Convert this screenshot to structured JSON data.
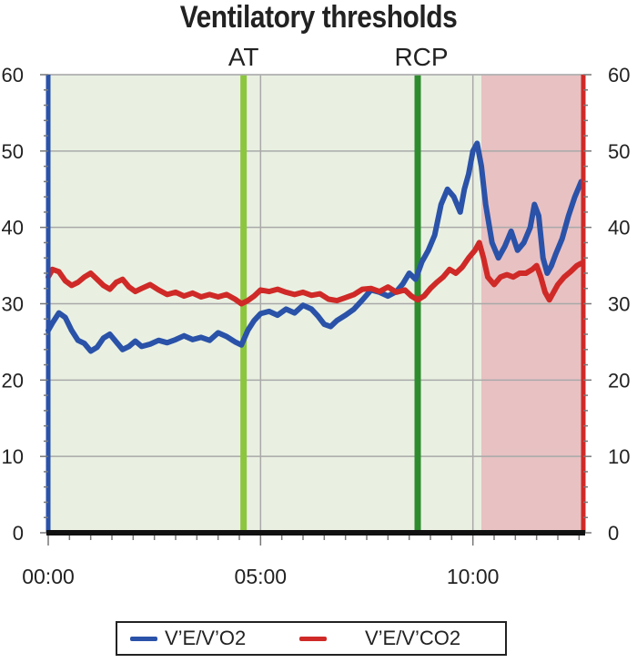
{
  "chart_data": {
    "type": "line",
    "title": "Ventilatory thresholds",
    "xlabel": "",
    "ylabel": "",
    "xlim": [
      0,
      12.6
    ],
    "ylim": [
      0,
      60
    ],
    "x_ticks": [
      0,
      5,
      10
    ],
    "x_tick_labels": [
      "00:00",
      "05:00",
      "10:00"
    ],
    "y_ticks": [
      0,
      10,
      20,
      30,
      40,
      50,
      60
    ],
    "y_tick_labels": [
      "0",
      "10",
      "20",
      "30",
      "40",
      "50",
      "60"
    ],
    "grid": true,
    "legend_position": "bottom",
    "zones": [
      {
        "x_start": 0,
        "x_end": 10.2,
        "color": "#e9f0e2"
      },
      {
        "x_start": 10.2,
        "x_end": 12.6,
        "color": "#e8c1c3"
      }
    ],
    "thresholds": [
      {
        "label": "AT",
        "x": 4.6,
        "color": "#8cc63f"
      },
      {
        "label": "RCP",
        "x": 8.7,
        "color": "#2e8b2e"
      }
    ],
    "series": [
      {
        "name": "V’E/V’O2",
        "color": "#2a52a8",
        "points": [
          [
            0.0,
            26.5
          ],
          [
            0.1,
            27.5
          ],
          [
            0.25,
            28.8
          ],
          [
            0.4,
            28.2
          ],
          [
            0.55,
            26.5
          ],
          [
            0.7,
            25.2
          ],
          [
            0.85,
            24.8
          ],
          [
            1.0,
            23.8
          ],
          [
            1.15,
            24.3
          ],
          [
            1.3,
            25.5
          ],
          [
            1.45,
            26.0
          ],
          [
            1.6,
            25.0
          ],
          [
            1.75,
            24.0
          ],
          [
            1.9,
            24.4
          ],
          [
            2.05,
            25.1
          ],
          [
            2.2,
            24.4
          ],
          [
            2.4,
            24.7
          ],
          [
            2.6,
            25.2
          ],
          [
            2.8,
            24.9
          ],
          [
            3.0,
            25.3
          ],
          [
            3.2,
            25.8
          ],
          [
            3.4,
            25.3
          ],
          [
            3.6,
            25.6
          ],
          [
            3.8,
            25.2
          ],
          [
            4.0,
            26.2
          ],
          [
            4.2,
            25.7
          ],
          [
            4.4,
            25.0
          ],
          [
            4.55,
            24.6
          ],
          [
            4.7,
            26.5
          ],
          [
            4.85,
            27.8
          ],
          [
            5.0,
            28.7
          ],
          [
            5.2,
            29.0
          ],
          [
            5.4,
            28.5
          ],
          [
            5.6,
            29.3
          ],
          [
            5.8,
            28.8
          ],
          [
            6.0,
            29.8
          ],
          [
            6.2,
            29.3
          ],
          [
            6.35,
            28.4
          ],
          [
            6.5,
            27.3
          ],
          [
            6.65,
            27.0
          ],
          [
            6.8,
            27.8
          ],
          [
            7.0,
            28.5
          ],
          [
            7.2,
            29.3
          ],
          [
            7.4,
            30.5
          ],
          [
            7.6,
            31.8
          ],
          [
            7.8,
            31.5
          ],
          [
            8.0,
            31.0
          ],
          [
            8.2,
            31.6
          ],
          [
            8.35,
            32.6
          ],
          [
            8.5,
            34.0
          ],
          [
            8.65,
            33.2
          ],
          [
            8.8,
            35.5
          ],
          [
            8.95,
            37.0
          ],
          [
            9.1,
            39.0
          ],
          [
            9.25,
            43.0
          ],
          [
            9.4,
            45.0
          ],
          [
            9.55,
            44.0
          ],
          [
            9.7,
            42.0
          ],
          [
            9.8,
            45.0
          ],
          [
            9.9,
            47.0
          ],
          [
            10.0,
            50.0
          ],
          [
            10.1,
            51.0
          ],
          [
            10.2,
            48.0
          ],
          [
            10.3,
            43.0
          ],
          [
            10.45,
            38.0
          ],
          [
            10.6,
            36.0
          ],
          [
            10.75,
            37.5
          ],
          [
            10.9,
            39.5
          ],
          [
            11.05,
            37.0
          ],
          [
            11.2,
            38.0
          ],
          [
            11.35,
            40.0
          ],
          [
            11.45,
            43.0
          ],
          [
            11.55,
            41.5
          ],
          [
            11.65,
            36.0
          ],
          [
            11.75,
            34.0
          ],
          [
            11.85,
            35.0
          ],
          [
            11.95,
            36.5
          ],
          [
            12.1,
            38.5
          ],
          [
            12.25,
            41.5
          ],
          [
            12.4,
            44.0
          ],
          [
            12.55,
            46.0
          ]
        ]
      },
      {
        "name": "V’E/V’CO2",
        "color": "#cf2a27",
        "points": [
          [
            0.0,
            33.5
          ],
          [
            0.1,
            34.5
          ],
          [
            0.25,
            34.2
          ],
          [
            0.4,
            33.0
          ],
          [
            0.55,
            32.4
          ],
          [
            0.7,
            32.8
          ],
          [
            0.85,
            33.5
          ],
          [
            1.0,
            34.0
          ],
          [
            1.15,
            33.2
          ],
          [
            1.3,
            32.4
          ],
          [
            1.45,
            31.9
          ],
          [
            1.6,
            32.8
          ],
          [
            1.75,
            33.2
          ],
          [
            1.9,
            32.2
          ],
          [
            2.05,
            31.6
          ],
          [
            2.2,
            32.0
          ],
          [
            2.4,
            32.5
          ],
          [
            2.6,
            31.8
          ],
          [
            2.8,
            31.2
          ],
          [
            3.0,
            31.5
          ],
          [
            3.2,
            31.0
          ],
          [
            3.4,
            31.4
          ],
          [
            3.6,
            30.9
          ],
          [
            3.8,
            31.2
          ],
          [
            4.0,
            30.9
          ],
          [
            4.2,
            31.2
          ],
          [
            4.4,
            30.6
          ],
          [
            4.55,
            30.0
          ],
          [
            4.7,
            30.4
          ],
          [
            4.85,
            31.0
          ],
          [
            5.0,
            31.8
          ],
          [
            5.2,
            31.6
          ],
          [
            5.4,
            31.9
          ],
          [
            5.6,
            31.5
          ],
          [
            5.8,
            31.2
          ],
          [
            6.0,
            31.5
          ],
          [
            6.2,
            31.1
          ],
          [
            6.4,
            31.3
          ],
          [
            6.6,
            30.6
          ],
          [
            6.8,
            30.4
          ],
          [
            7.0,
            30.8
          ],
          [
            7.2,
            31.2
          ],
          [
            7.4,
            31.9
          ],
          [
            7.6,
            32.0
          ],
          [
            7.8,
            31.6
          ],
          [
            8.0,
            32.2
          ],
          [
            8.2,
            31.5
          ],
          [
            8.4,
            31.8
          ],
          [
            8.55,
            31.0
          ],
          [
            8.7,
            30.5
          ],
          [
            8.85,
            31.0
          ],
          [
            9.0,
            32.0
          ],
          [
            9.15,
            32.8
          ],
          [
            9.3,
            33.5
          ],
          [
            9.45,
            34.5
          ],
          [
            9.6,
            34.0
          ],
          [
            9.75,
            34.8
          ],
          [
            9.9,
            36.0
          ],
          [
            10.05,
            37.0
          ],
          [
            10.15,
            38.0
          ],
          [
            10.25,
            36.0
          ],
          [
            10.35,
            33.5
          ],
          [
            10.5,
            32.5
          ],
          [
            10.65,
            33.5
          ],
          [
            10.8,
            33.8
          ],
          [
            10.95,
            33.5
          ],
          [
            11.1,
            34.0
          ],
          [
            11.25,
            34.0
          ],
          [
            11.4,
            34.5
          ],
          [
            11.5,
            35.0
          ],
          [
            11.6,
            33.5
          ],
          [
            11.7,
            31.5
          ],
          [
            11.8,
            30.5
          ],
          [
            11.9,
            31.5
          ],
          [
            12.0,
            32.5
          ],
          [
            12.15,
            33.5
          ],
          [
            12.3,
            34.2
          ],
          [
            12.45,
            35.0
          ],
          [
            12.55,
            35.3
          ]
        ]
      }
    ]
  }
}
